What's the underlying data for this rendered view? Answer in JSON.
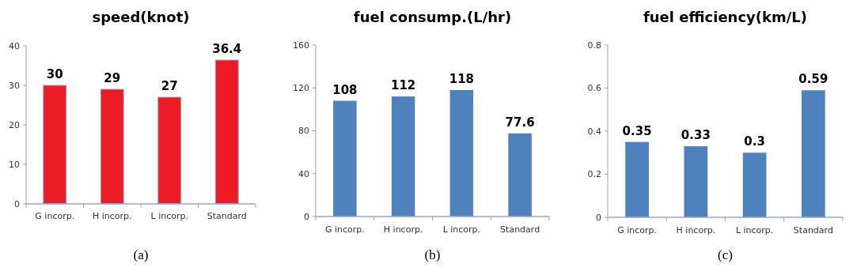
{
  "chart_data": [
    {
      "type": "bar",
      "title": "speed(knot)",
      "categories": [
        "G incorp.",
        "H incorp.",
        "L incorp.",
        "Standard"
      ],
      "values": [
        30,
        29,
        27,
        36.4
      ],
      "color": "#ed1c24",
      "ylim": [
        0,
        40
      ],
      "yticks": [
        0,
        10,
        20,
        30,
        40
      ],
      "data_labels": true,
      "annotations": [
        "(a)"
      ]
    },
    {
      "type": "bar",
      "title": "fuel consump.(L/hr)",
      "categories": [
        "G incorp.",
        "H incorp.",
        "L incorp.",
        "Standard"
      ],
      "values": [
        108,
        112,
        118,
        77.6
      ],
      "color": "#4f81bd",
      "ylim": [
        0,
        160
      ],
      "yticks": [
        0,
        40,
        80,
        120,
        160
      ],
      "data_labels": true,
      "annotations": [
        "(b)"
      ]
    },
    {
      "type": "bar",
      "title": "fuel efficiency(km/L)",
      "categories": [
        "G incorp.",
        "H incorp.",
        "L incorp.",
        "Standard"
      ],
      "values": [
        0.35,
        0.33,
        0.3,
        0.59
      ],
      "color": "#4f81bd",
      "ylim": [
        0,
        0.8
      ],
      "yticks": [
        0,
        0.2,
        0.4,
        0.6,
        0.8
      ],
      "data_labels": true,
      "annotations": [
        "(c)"
      ]
    }
  ]
}
